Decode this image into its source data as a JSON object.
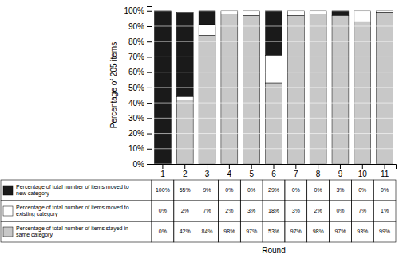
{
  "chart_data": {
    "type": "bar",
    "stacked": true,
    "grid": true,
    "xlabel": "Round",
    "ylabel": "Percentage of 205 items",
    "categories": [
      "1",
      "2",
      "3",
      "4",
      "5",
      "6",
      "7",
      "8",
      "9",
      "10",
      "11"
    ],
    "series": [
      {
        "name": "Percentage of total number of items moved to\nnew category",
        "color": "#1a1a1a",
        "values": [
          100,
          55,
          9,
          0,
          0,
          29,
          0,
          0,
          3,
          0,
          0
        ],
        "value_labels": [
          "100%",
          "55%",
          "9%",
          "0%",
          "0%",
          "29%",
          "0%",
          "0%",
          "3%",
          "0%",
          "0%"
        ]
      },
      {
        "name": "Percentage of total number of items moved to\nexisting category",
        "color": "#ffffff",
        "values": [
          0,
          2,
          7,
          2,
          3,
          18,
          3,
          2,
          0,
          7,
          1
        ],
        "value_labels": [
          "0%",
          "2%",
          "7%",
          "2%",
          "3%",
          "18%",
          "3%",
          "2%",
          "0%",
          "7%",
          "1%"
        ]
      },
      {
        "name": "Percentage of total number of items stayed in\nsame category",
        "color": "#c8c8c8",
        "values": [
          0,
          42,
          84,
          98,
          97,
          53,
          97,
          98,
          97,
          93,
          99
        ],
        "value_labels": [
          "0%",
          "42%",
          "84%",
          "98%",
          "97%",
          "53%",
          "97%",
          "98%",
          "97%",
          "93%",
          "99%"
        ]
      }
    ],
    "ylim": [
      0,
      103
    ],
    "yticks": [
      {
        "value": 0,
        "label": "0%"
      },
      {
        "value": 10,
        "label": "10%"
      },
      {
        "value": 20,
        "label": "20%"
      },
      {
        "value": 30,
        "label": "30%"
      },
      {
        "value": 40,
        "label": "40%"
      },
      {
        "value": 50,
        "label": "50%"
      },
      {
        "value": 60,
        "label": "60%"
      },
      {
        "value": 70,
        "label": "70%"
      },
      {
        "value": 80,
        "label": "80%"
      },
      {
        "value": 90,
        "label": "90%"
      },
      {
        "value": 100,
        "label": "100%"
      }
    ]
  }
}
